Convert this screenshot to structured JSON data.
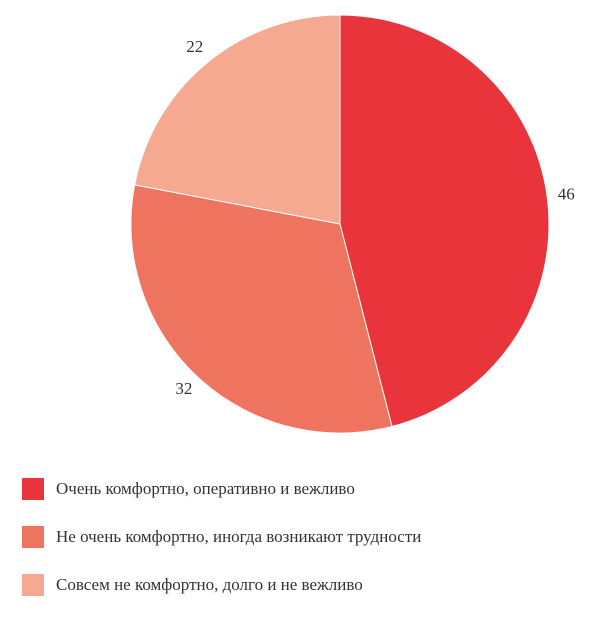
{
  "chart_data": {
    "type": "pie",
    "slices": [
      {
        "label": "Очень комфортно, оперативно и вежливо",
        "value": 46,
        "color": "#E8343A"
      },
      {
        "label": "Не очень комфортно, иногда возникают трудности",
        "value": 32,
        "color": "#EE7460"
      },
      {
        "label": "Совсем не комфортно, долго и не вежливо",
        "value": 22,
        "color": "#F4A990"
      }
    ],
    "start": "12 o'clock",
    "direction": "clockwise",
    "data_labels": "outside",
    "legend": "bottom"
  }
}
